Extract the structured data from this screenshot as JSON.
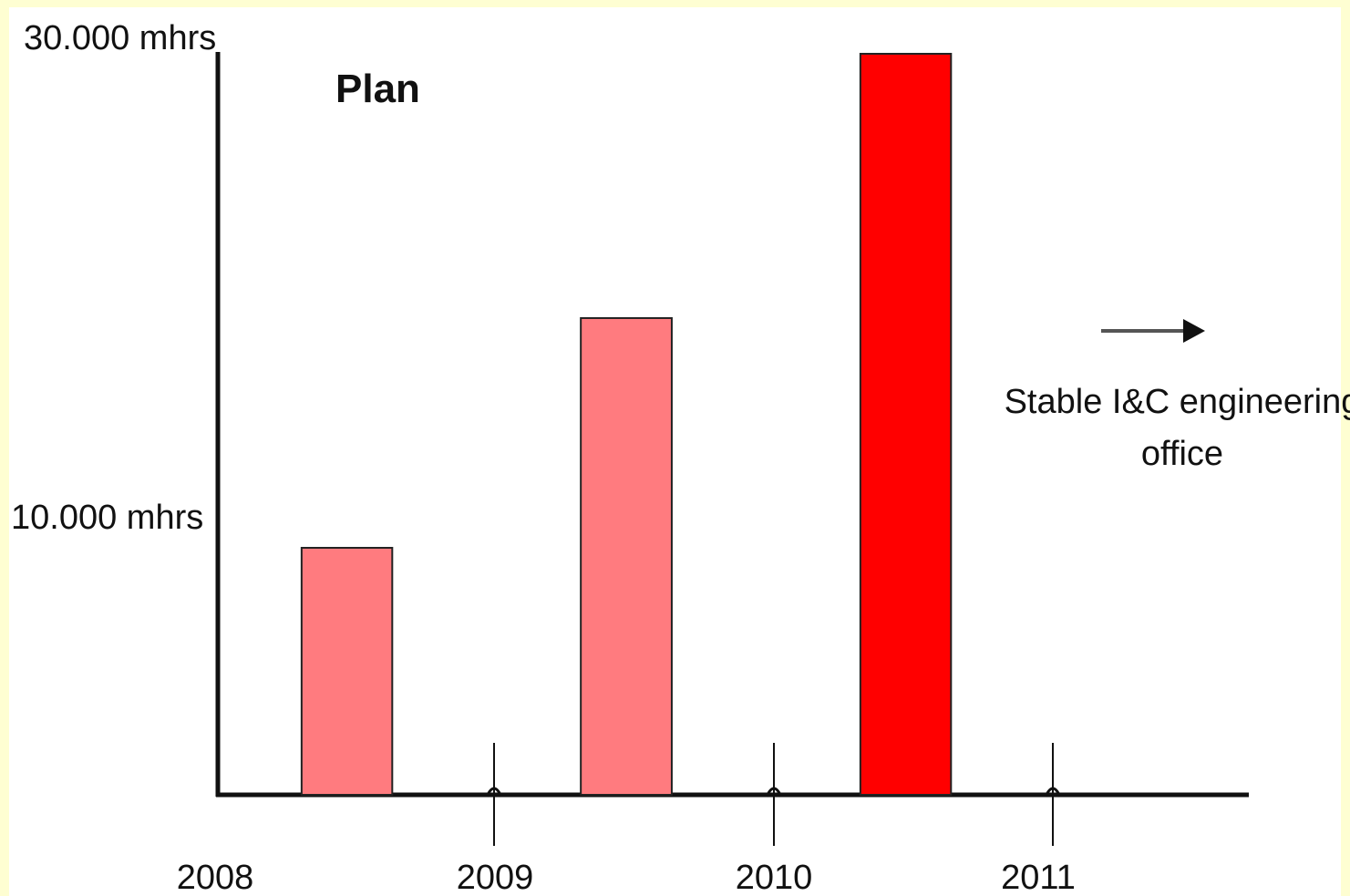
{
  "chart_data": {
    "type": "bar",
    "title": "Plan",
    "x_tick_labels": [
      "2008",
      "2009",
      "2010",
      "2011"
    ],
    "y_tick_labels": [
      "30.000 mhrs",
      "10.000 mhrs"
    ],
    "y_ticks": [
      30000,
      10000
    ],
    "ylim": [
      0,
      30000
    ],
    "unit": "mhrs",
    "bars": [
      {
        "year_start": 2008,
        "year_end": 2009,
        "value": 10000,
        "color": "#ff7b7f"
      },
      {
        "year_start": 2009,
        "year_end": 2010,
        "value": 19300,
        "color": "#ff7b7f"
      },
      {
        "year_start": 2010,
        "year_end": 2011,
        "value": 30000,
        "color": "#ff0000"
      }
    ],
    "annotation": {
      "line1": "Stable I&C engineering",
      "line2": "office"
    }
  },
  "colors": {
    "background": "#fefed2",
    "plot_background": "#ffffff",
    "bar_light": "#ff7b7f",
    "bar_strong": "#ff0000",
    "axis": "#111111"
  }
}
